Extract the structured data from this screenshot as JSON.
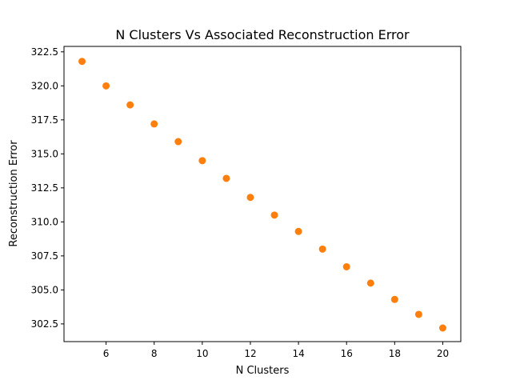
{
  "chart_data": {
    "type": "scatter",
    "title": "N Clusters Vs Associated Reconstruction Error",
    "xlabel": "N Clusters",
    "ylabel": "Reconstruction Error",
    "xlim": [
      4.25,
      20.75
    ],
    "ylim": [
      301.2,
      322.9
    ],
    "xticks": [
      6,
      8,
      10,
      12,
      14,
      16,
      18,
      20
    ],
    "xtick_labels": [
      "6",
      "8",
      "10",
      "12",
      "14",
      "16",
      "18",
      "20"
    ],
    "yticks": [
      302.5,
      305.0,
      307.5,
      310.0,
      312.5,
      315.0,
      317.5,
      320.0,
      322.5
    ],
    "ytick_labels": [
      "302.5",
      "305.0",
      "307.5",
      "310.0",
      "312.5",
      "315.0",
      "317.5",
      "320.0",
      "322.5"
    ],
    "grid": false,
    "legend": "none",
    "marker_color": "#ff7f0e",
    "series": [
      {
        "x": [
          5,
          6,
          7,
          8,
          9,
          10,
          11,
          12,
          13,
          14,
          15,
          16,
          17,
          18,
          19,
          20
        ],
        "y": [
          321.8,
          320.0,
          318.6,
          317.2,
          315.9,
          314.5,
          313.2,
          311.8,
          310.5,
          309.3,
          308.0,
          306.7,
          305.5,
          304.3,
          303.2,
          302.2
        ]
      }
    ]
  }
}
